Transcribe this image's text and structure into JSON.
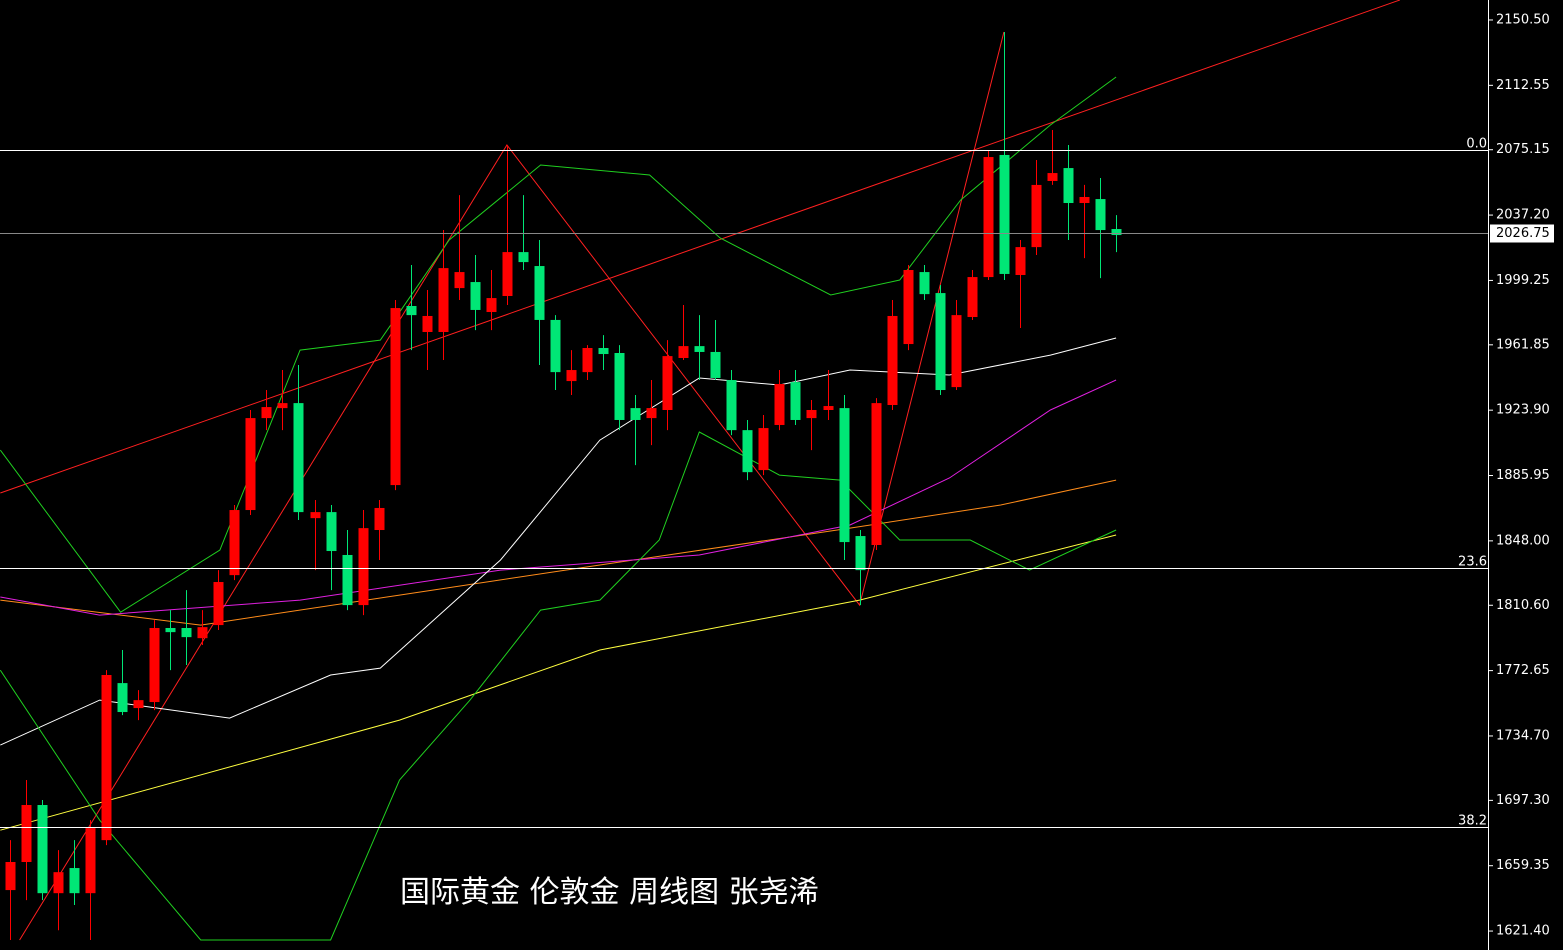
{
  "chart_data": {
    "type": "candlestick",
    "title": "国际黄金 伦敦金 周线图  张尧浠",
    "up_color": "#ff0000",
    "down_color": "#00e676",
    "xlim": [
      -0.62,
      92.2
    ],
    "ylim": [
      1610.4,
      2162.1
    ],
    "yticks": [
      {
        "value": 2150.5,
        "label": "2150.50"
      },
      {
        "value": 2112.55,
        "label": "2112.55"
      },
      {
        "value": 2075.15,
        "label": "2075.15"
      },
      {
        "value": 2037.2,
        "label": "2037.20"
      },
      {
        "value": 1999.25,
        "label": "1999.25"
      },
      {
        "value": 1961.85,
        "label": "1961.85"
      },
      {
        "value": 1923.9,
        "label": "1923.90"
      },
      {
        "value": 1885.95,
        "label": "1885.95"
      },
      {
        "value": 1848.0,
        "label": "1848.00"
      },
      {
        "value": 1810.6,
        "label": "1810.60"
      },
      {
        "value": 1772.65,
        "label": "1772.65"
      },
      {
        "value": 1734.7,
        "label": "1734.70"
      },
      {
        "value": 1697.3,
        "label": "1697.30"
      },
      {
        "value": 1659.35,
        "label": "1659.35"
      },
      {
        "value": 1621.4,
        "label": "1621.40"
      }
    ],
    "current_price": {
      "value": 2026.75,
      "label": "2026.75"
    },
    "fib_levels": [
      {
        "value": 2075.0,
        "label": "0.0"
      },
      {
        "value": 1832.2,
        "label": "23.6"
      },
      {
        "value": 1681.8,
        "label": "38.2"
      }
    ],
    "ohlc": [
      [
        1645.2,
        1674.2,
        1616.2,
        1661.5
      ],
      [
        1661.5,
        1709.1,
        1639.4,
        1694.6
      ],
      [
        1694.6,
        1697.5,
        1639.4,
        1643.4
      ],
      [
        1643.4,
        1668.4,
        1621.9,
        1655.6
      ],
      [
        1658.0,
        1674.2,
        1636.5,
        1643.4
      ],
      [
        1643.4,
        1685.8,
        1616.2,
        1681.2
      ],
      [
        1674.2,
        1772.9,
        1671.3,
        1770.1
      ],
      [
        1765.4,
        1784.6,
        1746.8,
        1748.6
      ],
      [
        1750.9,
        1761.3,
        1743.9,
        1755.5
      ],
      [
        1754.4,
        1802.0,
        1749.7,
        1797.4
      ],
      [
        1797.4,
        1807.8,
        1772.9,
        1795.0
      ],
      [
        1797.4,
        1819.4,
        1775.9,
        1792.1
      ],
      [
        1791.5,
        1807.8,
        1787.5,
        1797.9
      ],
      [
        1799.1,
        1831.0,
        1796.2,
        1824.1
      ],
      [
        1828.1,
        1868.8,
        1825.2,
        1865.9
      ],
      [
        1865.9,
        1924.0,
        1863.0,
        1919.3
      ],
      [
        1919.3,
        1935.6,
        1912.3,
        1925.7
      ],
      [
        1925.1,
        1947.2,
        1912.3,
        1928.0
      ],
      [
        1928.0,
        1950.1,
        1860.1,
        1864.7
      ],
      [
        1861.2,
        1871.7,
        1831.0,
        1864.7
      ],
      [
        1864.7,
        1868.8,
        1819.4,
        1842.1
      ],
      [
        1839.8,
        1854.3,
        1807.8,
        1810.7
      ],
      [
        1810.7,
        1865.9,
        1804.9,
        1855.4
      ],
      [
        1854.3,
        1871.7,
        1836.9,
        1867.1
      ],
      [
        1880.4,
        1987.9,
        1877.5,
        1983.2
      ],
      [
        1984.4,
        2008.2,
        1958.8,
        1979.1
      ],
      [
        1969.3,
        1993.7,
        1947.2,
        1978.6
      ],
      [
        1969.3,
        2028.5,
        1953.0,
        2006.4
      ],
      [
        1994.8,
        2048.8,
        1987.9,
        2004.1
      ],
      [
        1998.3,
        2014.0,
        1970.4,
        1982.1
      ],
      [
        1980.9,
        2005.3,
        1970.4,
        1989.0
      ],
      [
        1990.2,
        2077.9,
        1985.0,
        2015.7
      ],
      [
        2015.7,
        2048.8,
        2005.3,
        2009.9
      ],
      [
        2007.6,
        2022.7,
        1950.1,
        1976.3
      ],
      [
        1976.3,
        1979.1,
        1935.6,
        1946.0
      ],
      [
        1940.8,
        1958.8,
        1932.7,
        1947.2
      ],
      [
        1946.0,
        1961.7,
        1941.4,
        1960.0
      ],
      [
        1960.0,
        1967.5,
        1947.2,
        1956.5
      ],
      [
        1957.1,
        1961.7,
        1912.3,
        1918.2
      ],
      [
        1925.1,
        1932.7,
        1892.0,
        1918.2
      ],
      [
        1919.3,
        1941.4,
        1903.6,
        1925.1
      ],
      [
        1924.0,
        1964.6,
        1912.3,
        1955.3
      ],
      [
        1954.2,
        1985.0,
        1953.0,
        1961.1
      ],
      [
        1961.1,
        1979.1,
        1941.4,
        1957.7
      ],
      [
        1957.7,
        1976.3,
        1941.4,
        1942.6
      ],
      [
        1941.4,
        1947.2,
        1909.4,
        1912.3
      ],
      [
        1912.3,
        1918.2,
        1883.3,
        1887.9
      ],
      [
        1889.1,
        1921.1,
        1886.2,
        1913.5
      ],
      [
        1915.3,
        1947.2,
        1912.3,
        1939.1
      ],
      [
        1940.2,
        1947.2,
        1915.3,
        1918.2
      ],
      [
        1919.3,
        1929.8,
        1900.7,
        1924.0
      ],
      [
        1924.0,
        1947.2,
        1918.2,
        1926.3
      ],
      [
        1925.1,
        1932.7,
        1836.9,
        1847.3
      ],
      [
        1850.8,
        1854.3,
        1810.7,
        1831.0
      ],
      [
        1845.6,
        1930.9,
        1842.7,
        1928.0
      ],
      [
        1926.9,
        1987.9,
        1924.0,
        1978.6
      ],
      [
        1962.3,
        2008.2,
        1958.8,
        2005.3
      ],
      [
        2004.1,
        2008.2,
        1987.9,
        1991.3
      ],
      [
        1991.9,
        1996.6,
        1932.7,
        1935.6
      ],
      [
        1937.3,
        1987.9,
        1935.6,
        1979.1
      ],
      [
        1978.0,
        2005.3,
        1976.3,
        2001.2
      ],
      [
        2001.2,
        2075.0,
        1999.5,
        2070.9
      ],
      [
        2072.1,
        2143.5,
        1999.5,
        2003.0
      ],
      [
        2002.4,
        2022.7,
        1971.6,
        2018.6
      ],
      [
        2018.6,
        2069.2,
        2014.0,
        2054.7
      ],
      [
        2057.0,
        2086.6,
        2054.7,
        2061.6
      ],
      [
        2064.5,
        2077.9,
        2022.7,
        2044.2
      ],
      [
        2044.2,
        2054.7,
        2012.2,
        2047.7
      ],
      [
        2046.5,
        2058.7,
        2000.6,
        2028.5
      ],
      [
        2029.1,
        2037.2,
        2015.7,
        2025.6
      ]
    ],
    "overlays": [
      {
        "color": "#ff2020",
        "x": [
          -0.6,
          86.7
        ],
        "values": [
          1875.8,
          2162.1
        ]
      },
      {
        "color": "#ff2020",
        "x": [
          0.6,
          31,
          53,
          62
        ],
        "values": [
          1616.2,
          2077.9,
          1810.7,
          2143.5
        ]
      },
      {
        "color": "#ffff40",
        "x": [
          -0.6,
          24.3,
          36.8,
          53,
          69
        ],
        "values": [
          1680.0,
          1743.9,
          1784.6,
          1813.6,
          1851.4
        ]
      },
      {
        "color": "#ff8c1a",
        "x": [
          -0.6,
          11.9,
          24.3,
          36.8,
          52.4,
          61.8,
          69
        ],
        "values": [
          1813.6,
          1799.1,
          1816.5,
          1834.0,
          1855.4,
          1868.8,
          1883.3
        ]
      },
      {
        "color": "#e020e0",
        "x": [
          -0.6,
          5.6,
          18.1,
          30.6,
          43,
          52.4,
          58.6,
          64.9,
          69
        ],
        "values": [
          1815.4,
          1804.9,
          1813.6,
          1831.0,
          1839.8,
          1857.2,
          1884.5,
          1924.0,
          1941.4
        ]
      },
      {
        "color": "#ffffff",
        "x": [
          -0.6,
          5.6,
          13.7,
          20,
          23.1,
          30.6,
          36.8,
          43,
          48,
          52.4,
          58.6,
          64.9,
          69
        ],
        "values": [
          1729.4,
          1755.5,
          1745.1,
          1770.1,
          1774.1,
          1836.9,
          1906.5,
          1942.6,
          1938.5,
          1947.2,
          1944.3,
          1955.9,
          1965.8
        ]
      },
      {
        "color": "#20d020",
        "x": [
          -0.6,
          6.9,
          13.1,
          18.1,
          23.1,
          27.4,
          33.1,
          39.9,
          44.3,
          51.2,
          55.5,
          59.3,
          64.9,
          69
        ],
        "values": [
          1900.7,
          1806.6,
          1842.7,
          1958.8,
          1964.6,
          2022.7,
          2066.3,
          2060.5,
          2023.9,
          1990.8,
          1999.5,
          2045.9,
          2089.5,
          2117.4
        ]
      },
      {
        "color": "#20d020",
        "x": [
          -0.6,
          5.6,
          11.9,
          20,
          24.3,
          28.7,
          33.1,
          36.8,
          40.5,
          43,
          48,
          51.8,
          55.5,
          59.9,
          63.6,
          69
        ],
        "values": [
          1772.9,
          1685.8,
          1616.2,
          1616.2,
          1709.1,
          1755.5,
          1807.8,
          1813.6,
          1848.5,
          1911.2,
          1886.2,
          1883.3,
          1848.5,
          1848.5,
          1831.0,
          1854.3
        ]
      }
    ]
  }
}
